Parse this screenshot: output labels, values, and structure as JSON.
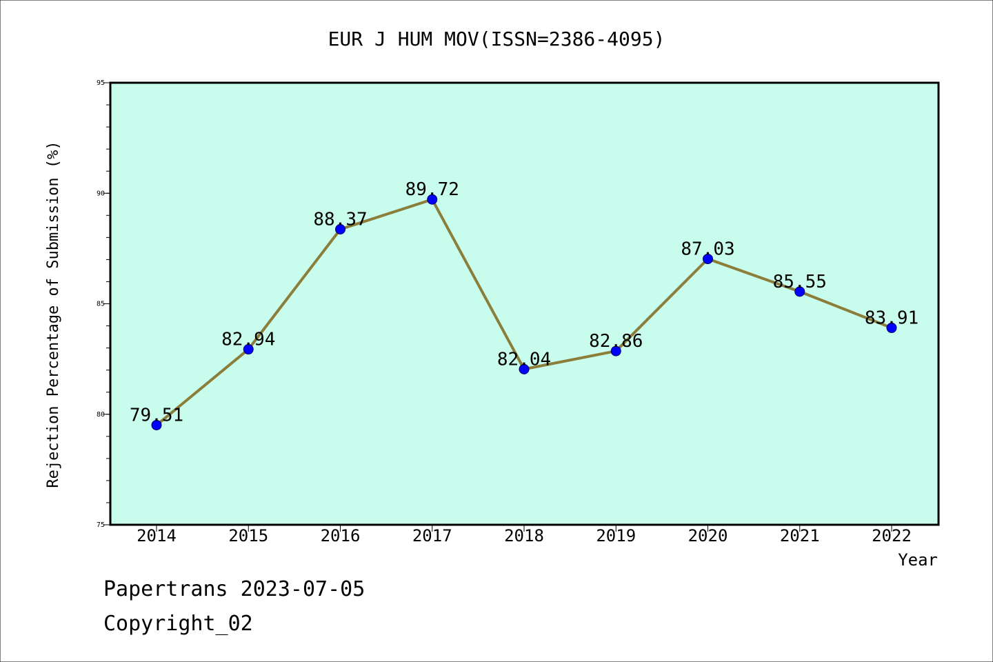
{
  "footer": {
    "line1": "Papertrans 2023-07-05",
    "line2": "Copyright_02"
  },
  "colors": {
    "background": "#ffffff",
    "plot_bg": "#c8fcec",
    "line": "#8b7d3a",
    "marker": "#0000ff"
  },
  "chart_data": {
    "type": "line",
    "title": "EUR J HUM MOV(ISSN=2386-4095)",
    "xlabel": "Year",
    "ylabel": "Rejection Percentage of Submission (%)",
    "categories": [
      "2014",
      "2015",
      "2016",
      "2017",
      "2018",
      "2019",
      "2020",
      "2021",
      "2022"
    ],
    "values": [
      79.51,
      82.94,
      88.37,
      89.72,
      82.04,
      82.86,
      87.03,
      85.55,
      83.91
    ],
    "data_labels": [
      "79.51",
      "82.94",
      "88.37",
      "89.72",
      "82.04",
      "82.86",
      "87.03",
      "85.55",
      "83.91"
    ],
    "ylim": [
      75,
      95
    ],
    "yticks": [
      75,
      80,
      85,
      90,
      95
    ],
    "ytick_labels": [
      "75",
      "80",
      "85",
      "90",
      "95"
    ],
    "y_minor_step": 1,
    "grid": false,
    "legend": "none"
  }
}
